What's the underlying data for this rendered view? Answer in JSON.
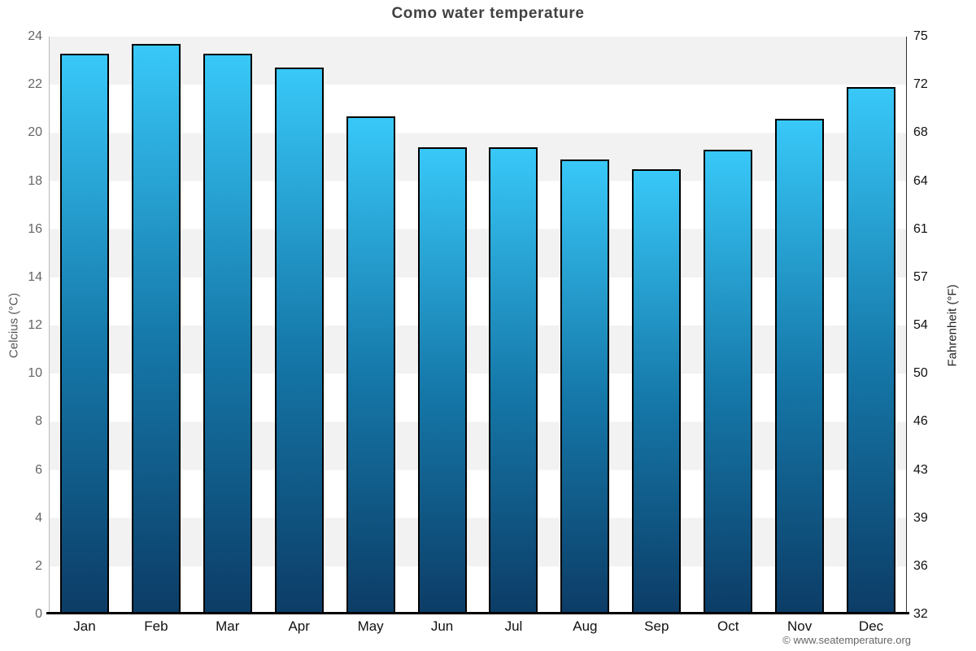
{
  "page": {
    "footer": "© www.seatemperature.org"
  },
  "chart_data": {
    "type": "bar",
    "title": "Como water temperature",
    "categories": [
      "Jan",
      "Feb",
      "Mar",
      "Apr",
      "May",
      "Jun",
      "Jul",
      "Aug",
      "Sep",
      "Oct",
      "Nov",
      "Dec"
    ],
    "values": [
      23.3,
      23.7,
      23.3,
      22.7,
      20.7,
      19.4,
      19.4,
      18.9,
      18.5,
      19.3,
      20.6,
      21.9
    ],
    "unit": "°C",
    "ylabel_left": "Celcius (°C)",
    "ylabel_right": "Fahrenheit (°F)",
    "ylim": [
      0,
      24
    ],
    "celsius_ticks": [
      0,
      2,
      4,
      6,
      8,
      10,
      12,
      14,
      16,
      18,
      20,
      22,
      24
    ],
    "fahrenheit_tick_labels": [
      "32",
      "36",
      "39",
      "43",
      "46",
      "50",
      "54",
      "57",
      "61",
      "64",
      "68",
      "72",
      "75"
    ],
    "legend": false,
    "grid": "alternating-horizontal-bands",
    "colors": {
      "bar_top": "#38c8f8",
      "bar_mid": "#1578a9",
      "bar_bottom": "#0c3c66",
      "bar_border": "#000000",
      "band_gray": "#f2f2f2",
      "band_white": "#ffffff",
      "title_text": "#414141",
      "left_tick_text": "#666666",
      "right_tick_text": "#111111",
      "footer_text": "#666666"
    }
  }
}
